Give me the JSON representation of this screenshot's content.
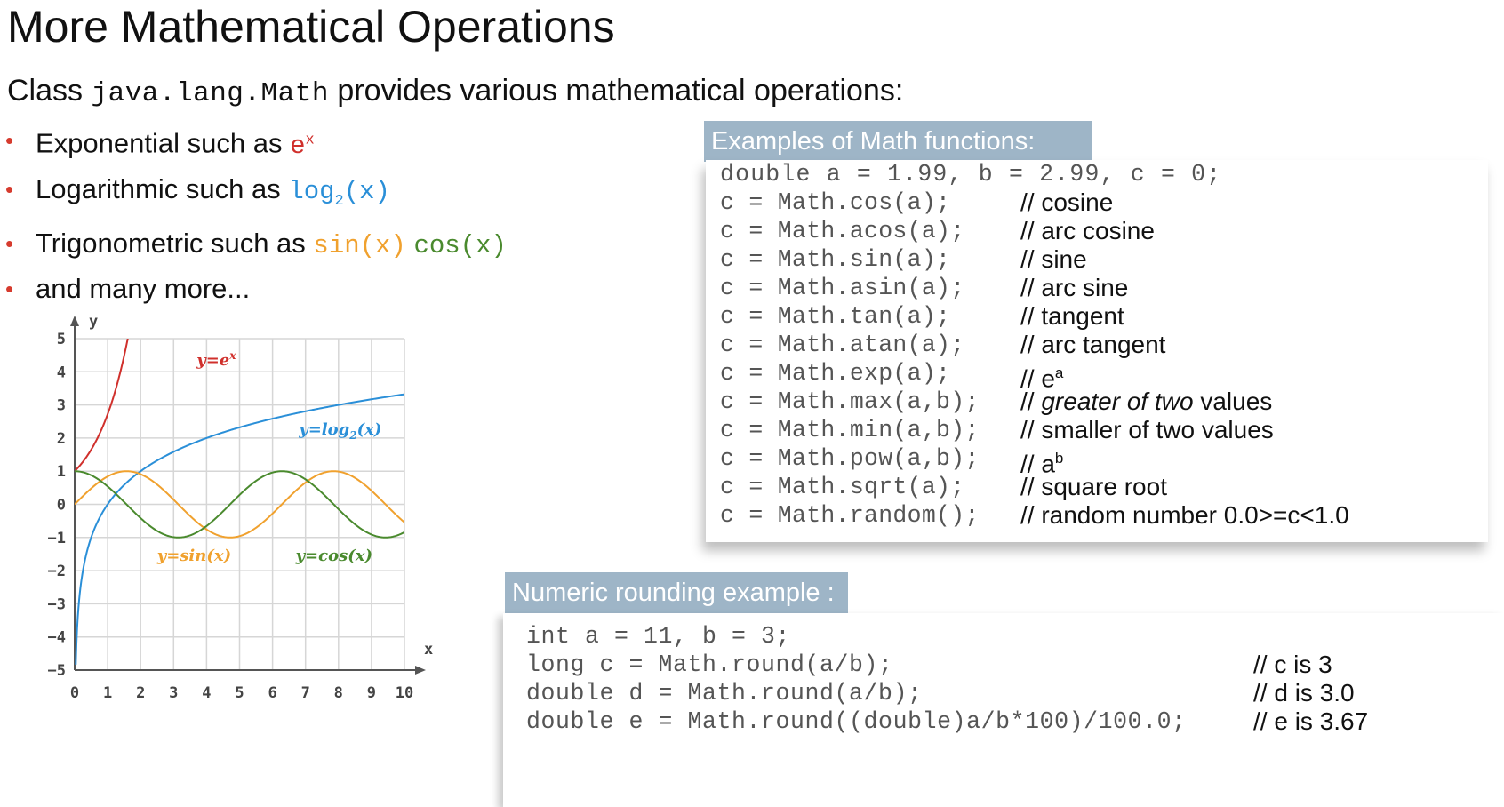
{
  "title": "More Mathematical Operations",
  "intro": {
    "prefix": "Class",
    "class_name": "java.lang.Math",
    "suffix": "provides various mathematical operations:"
  },
  "bullets": [
    {
      "text": "Exponential such as",
      "term_base": "e",
      "term_sup": "x"
    },
    {
      "text": "Logarithmic such as",
      "term_a": "log",
      "term_sub": "2",
      "term_b": "(x)"
    },
    {
      "text": "Trigonometric such as",
      "term_sin": "sin(x)",
      "term_cos": "cos(x)"
    },
    {
      "text": "and many more..."
    }
  ],
  "chart_data": {
    "type": "line",
    "xlabel": "x",
    "ylabel": "y",
    "xlim": [
      0,
      10
    ],
    "ylim": [
      -5,
      5
    ],
    "x_ticks": [
      "0",
      "1",
      "2",
      "3",
      "4",
      "5",
      "6",
      "7",
      "8",
      "9",
      "10"
    ],
    "y_ticks": [
      "5",
      "4",
      "3",
      "2",
      "1",
      "0",
      "−1",
      "−2",
      "−3",
      "−4",
      "−5"
    ],
    "grid": true,
    "series": [
      {
        "name": "y=e",
        "name_sup": "x",
        "color": "#d0302c",
        "function": "exp"
      },
      {
        "name": "y=log",
        "name_sub": "2",
        "name_tail": "(x)",
        "color": "#2a8fd8",
        "function": "log2"
      },
      {
        "name": "y=sin(x)",
        "color": "#f0a12e",
        "function": "sin"
      },
      {
        "name": "y=cos(x)",
        "color": "#4a8a2e",
        "function": "cos"
      }
    ]
  },
  "math_examples": {
    "title": "Examples of Math functions:",
    "lines": [
      {
        "code": "double a = 1.99, b = 2.99, c = 0;",
        "comment": ""
      },
      {
        "code": "c = Math.cos(a);",
        "comment": "// cosine"
      },
      {
        "code": "c = Math.acos(a);",
        "comment": "// arc cosine"
      },
      {
        "code": "c = Math.sin(a);",
        "comment": "// sine"
      },
      {
        "code": "c = Math.asin(a);",
        "comment": "// arc sine"
      },
      {
        "code": "c = Math.tan(a);",
        "comment": "// tangent"
      },
      {
        "code": "c = Math.atan(a);",
        "comment": "// arc tangent"
      },
      {
        "code": "c = Math.exp(a);",
        "comment": "// e",
        "sup": "a"
      },
      {
        "code": "c = Math.max(a,b);",
        "comment_prefix": "// ",
        "comment_italic": "greater of two",
        "comment": " values"
      },
      {
        "code": "c = Math.min(a,b);",
        "comment": "// smaller of two values"
      },
      {
        "code": "c = Math.pow(a,b);",
        "comment": "// a",
        "sup": "b"
      },
      {
        "code": "c = Math.sqrt(a);",
        "comment": "// square root"
      },
      {
        "code": "c = Math.random();",
        "comment": "// random number 0.0>=c<1.0"
      }
    ]
  },
  "rounding_example": {
    "title": "Numeric rounding example :",
    "lines": [
      {
        "code": "int a = 11, b = 3;",
        "comment": ""
      },
      {
        "code": "long c = Math.round(a/b);",
        "comment": "// c is 3"
      },
      {
        "code": "double d = Math.round(a/b);",
        "comment": "// d is 3.0"
      },
      {
        "code": "double e = Math.round((double)a/b*100)/100.0;",
        "comment": "// e is 3.67"
      }
    ]
  }
}
